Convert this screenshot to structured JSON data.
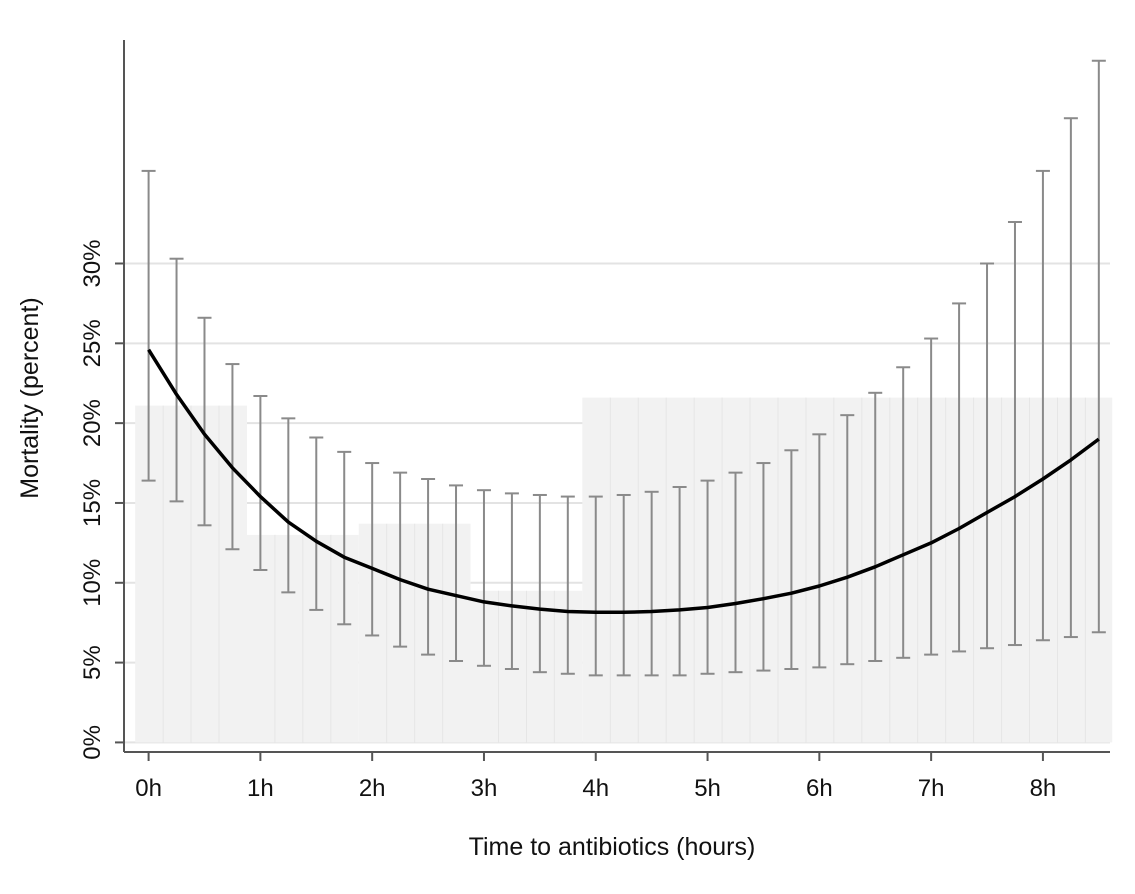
{
  "chart_data": {
    "type": "line",
    "title": "",
    "xlabel": "Time to antibiotics (hours)",
    "ylabel": "Mortality (percent)",
    "xlim": [
      -0.22,
      8.6
    ],
    "ylim": [
      -0.6,
      44
    ],
    "x_ticks": [
      {
        "value": 0,
        "label": "0h"
      },
      {
        "value": 1,
        "label": "1h"
      },
      {
        "value": 2,
        "label": "2h"
      },
      {
        "value": 3,
        "label": "3h"
      },
      {
        "value": 4,
        "label": "4h"
      },
      {
        "value": 5,
        "label": "5h"
      },
      {
        "value": 6,
        "label": "6h"
      },
      {
        "value": 7,
        "label": "7h"
      },
      {
        "value": 8,
        "label": "8h"
      }
    ],
    "y_ticks": [
      {
        "value": 0,
        "label": "0%"
      },
      {
        "value": 5,
        "label": "5%"
      },
      {
        "value": 10,
        "label": "10%"
      },
      {
        "value": 15,
        "label": "15%"
      },
      {
        "value": 20,
        "label": "20%"
      },
      {
        "value": 25,
        "label": "25%"
      },
      {
        "value": 30,
        "label": "30%"
      }
    ],
    "grid": true,
    "colors": {
      "curve": "#000000",
      "error_bars": "#8a8a8a",
      "histogram": "#f2f2f2",
      "histogram_lines": "#e6e6e6",
      "gridlines": "#e3e3e3",
      "axis": "#555555"
    },
    "background_histogram": {
      "bins": [
        {
          "x0": -0.12,
          "x1": 0.88,
          "value": 21.1
        },
        {
          "x0": 0.88,
          "x1": 1.88,
          "value": 13.0
        },
        {
          "x0": 1.88,
          "x1": 2.88,
          "value": 13.7
        },
        {
          "x0": 2.88,
          "x1": 3.88,
          "value": 9.5
        },
        {
          "x0": 3.88,
          "x1": 8.62,
          "value": 21.6
        }
      ],
      "subdivisions": 0.25
    },
    "curve": {
      "x": [
        0,
        0.25,
        0.5,
        0.75,
        1.0,
        1.25,
        1.5,
        1.75,
        2.0,
        2.25,
        2.5,
        2.75,
        3.0,
        3.25,
        3.5,
        3.75,
        4.0,
        4.25,
        4.5,
        4.75,
        5.0,
        5.25,
        5.5,
        5.75,
        6.0,
        6.25,
        6.5,
        6.75,
        7.0,
        7.25,
        7.5,
        7.75,
        8.0,
        8.25,
        8.5
      ],
      "y": [
        24.6,
        21.8,
        19.3,
        17.2,
        15.4,
        13.8,
        12.6,
        11.6,
        10.9,
        10.2,
        9.6,
        9.2,
        8.8,
        8.55,
        8.35,
        8.2,
        8.15,
        8.15,
        8.2,
        8.3,
        8.45,
        8.7,
        9.0,
        9.35,
        9.8,
        10.35,
        11.0,
        11.75,
        12.5,
        13.4,
        14.4,
        15.4,
        16.5,
        17.7,
        19.0
      ]
    },
    "error_bars": {
      "x": [
        0,
        0.25,
        0.5,
        0.75,
        1.0,
        1.25,
        1.5,
        1.75,
        2.0,
        2.25,
        2.5,
        2.75,
        3.0,
        3.25,
        3.5,
        3.75,
        4.0,
        4.25,
        4.5,
        4.75,
        5.0,
        5.25,
        5.5,
        5.75,
        6.0,
        6.25,
        6.5,
        6.75,
        7.0,
        7.25,
        7.5,
        7.75,
        8.0,
        8.25,
        8.5
      ],
      "lower": [
        16.4,
        15.1,
        13.6,
        12.1,
        10.8,
        9.4,
        8.3,
        7.4,
        6.7,
        6.0,
        5.5,
        5.1,
        4.8,
        4.6,
        4.4,
        4.3,
        4.2,
        4.2,
        4.2,
        4.2,
        4.3,
        4.4,
        4.5,
        4.6,
        4.7,
        4.9,
        5.1,
        5.3,
        5.5,
        5.7,
        5.9,
        6.1,
        6.4,
        6.6,
        6.9
      ],
      "upper": [
        35.8,
        30.3,
        26.6,
        23.7,
        21.7,
        20.3,
        19.1,
        18.2,
        17.5,
        16.9,
        16.5,
        16.1,
        15.8,
        15.6,
        15.5,
        15.4,
        15.4,
        15.5,
        15.7,
        16.0,
        16.4,
        16.9,
        17.5,
        18.3,
        19.3,
        20.5,
        21.9,
        23.5,
        25.3,
        27.5,
        30.0,
        32.6,
        35.8,
        39.1,
        42.7
      ]
    }
  }
}
